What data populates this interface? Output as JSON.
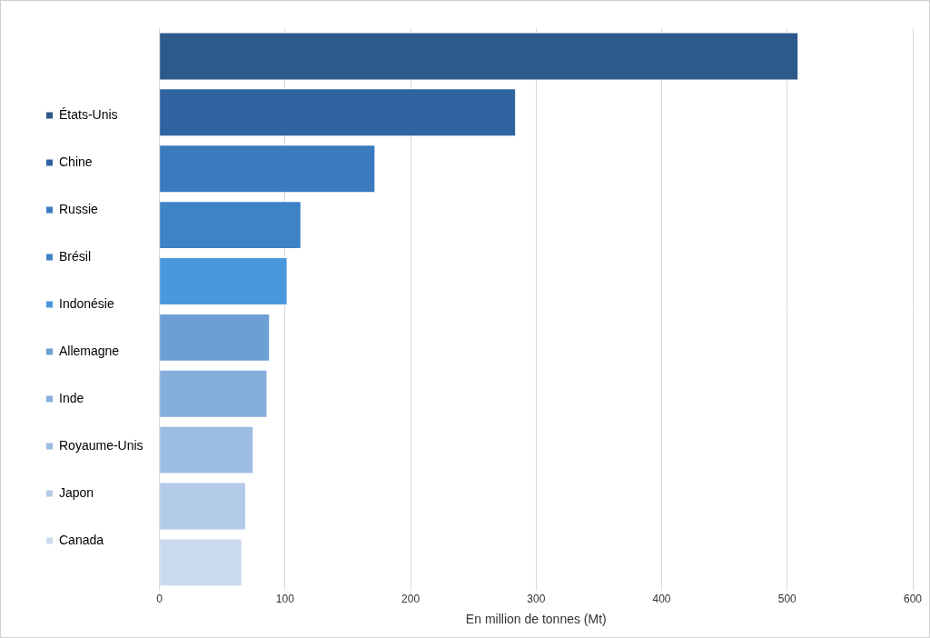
{
  "chart_data": {
    "type": "bar",
    "orientation": "horizontal",
    "xlabel": "En million de tonnes (Mt)",
    "categories": [
      "États-Unis",
      "Chine",
      "Russie",
      "Brésil",
      "Indonésie",
      "Allemagne",
      "Inde",
      "Royaume-Unis",
      "Japon",
      "Canada"
    ],
    "values": [
      509,
      284,
      172,
      113,
      102,
      88,
      86,
      75,
      69,
      66
    ],
    "colors": [
      "#2c5a8a",
      "#2f64a0",
      "#3a7bbf",
      "#3f82c6",
      "#4a98dc",
      "#6c9fd4",
      "#85aedb",
      "#9dbce2",
      "#b4cbe8",
      "#ccdaee"
    ],
    "xlim": [
      0,
      600
    ],
    "xticks": [
      0,
      100,
      200,
      300,
      400,
      500,
      600
    ],
    "grid": true,
    "legend": "left",
    "tick_labels": "x"
  }
}
